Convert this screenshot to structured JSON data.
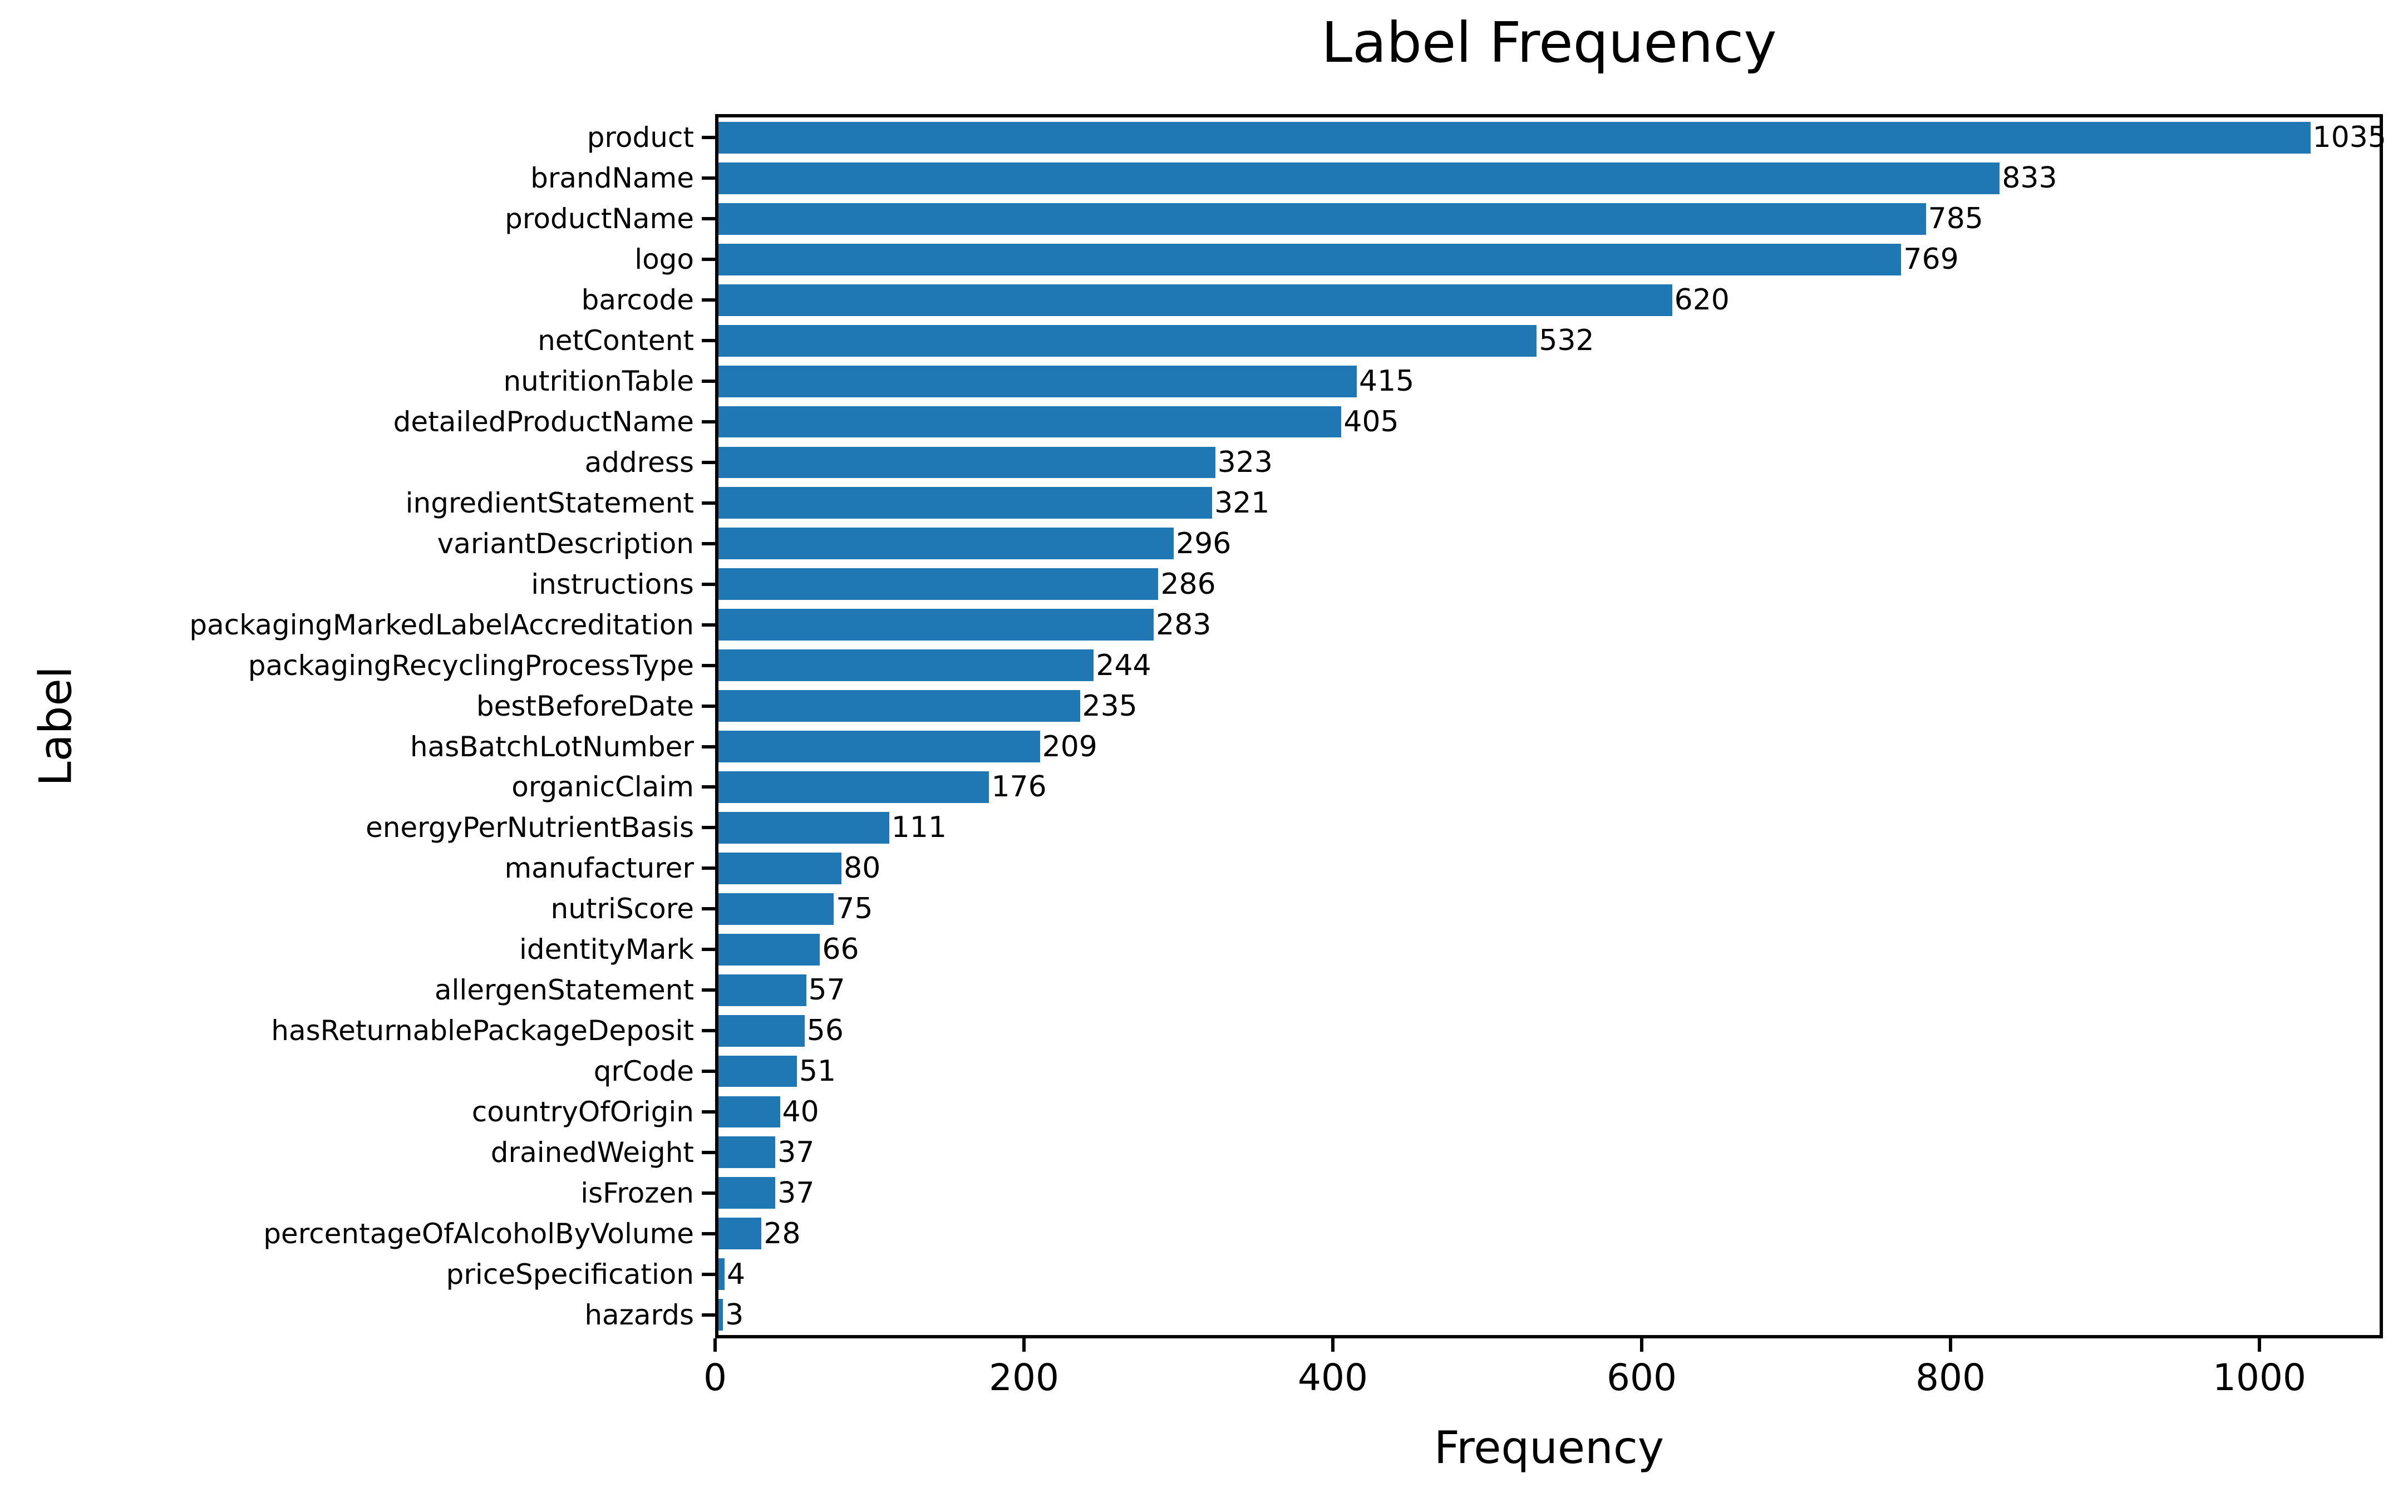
{
  "title": "Label Frequency",
  "chart_data": {
    "type": "bar",
    "orientation": "horizontal",
    "title": "Label Frequency",
    "xlabel": "Frequency",
    "ylabel": "Label",
    "xlim": [
      0,
      1080
    ],
    "x_ticks": [
      0,
      200,
      400,
      600,
      800,
      1000
    ],
    "grid": false,
    "legend": "none",
    "bar_color": "#1f77b4",
    "background_color": "#ffffff",
    "value_labels_shown": true,
    "categories": [
      "product",
      "brandName",
      "productName",
      "logo",
      "barcode",
      "netContent",
      "nutritionTable",
      "detailedProductName",
      "address",
      "ingredientStatement",
      "variantDescription",
      "instructions",
      "packagingMarkedLabelAccreditation",
      "packagingRecyclingProcessType",
      "bestBeforeDate",
      "hasBatchLotNumber",
      "organicClaim",
      "energyPerNutrientBasis",
      "manufacturer",
      "nutriScore",
      "identityMark",
      "allergenStatement",
      "hasReturnablePackageDeposit",
      "qrCode",
      "countryOfOrigin",
      "drainedWeight",
      "isFrozen",
      "percentageOfAlcoholByVolume",
      "priceSpecification",
      "hazards"
    ],
    "values": [
      1035,
      833,
      785,
      769,
      620,
      532,
      415,
      405,
      323,
      321,
      296,
      286,
      283,
      244,
      235,
      209,
      176,
      111,
      80,
      75,
      66,
      57,
      56,
      51,
      40,
      37,
      37,
      28,
      4,
      3
    ]
  }
}
